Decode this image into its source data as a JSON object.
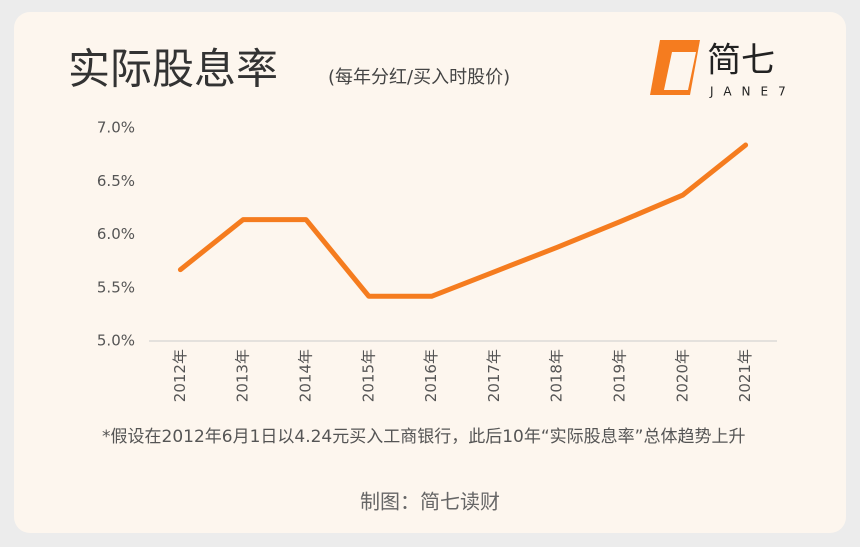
{
  "chart_data": {
    "type": "line",
    "title": "实际股息率",
    "subtitle": "(每年分红/买入时股价)",
    "categories": [
      "2012年",
      "2013年",
      "2014年",
      "2015年",
      "2016年",
      "2017年",
      "2018年",
      "2019年",
      "2020年",
      "2021年"
    ],
    "values": [
      5.67,
      6.14,
      6.14,
      5.42,
      5.42,
      5.65,
      5.88,
      6.12,
      6.37,
      6.84
    ],
    "color": "#f57c1f",
    "ylim": [
      5.0,
      7.0
    ],
    "yticks": [
      {
        "value": 5.0,
        "label": "5.0%"
      },
      {
        "value": 5.5,
        "label": "5.5%"
      },
      {
        "value": 6.0,
        "label": "6.0%"
      },
      {
        "value": 6.5,
        "label": "6.5%"
      },
      {
        "value": 7.0,
        "label": "7.0%"
      }
    ],
    "grid": false
  },
  "logo": {
    "mark": "简七",
    "text": "JANE7"
  },
  "footnote": "*假设在2012年6月1日以4.24元买入工商银行，此后10年“实际股息率”总体趋势上升",
  "credit": "制图：简七读财"
}
